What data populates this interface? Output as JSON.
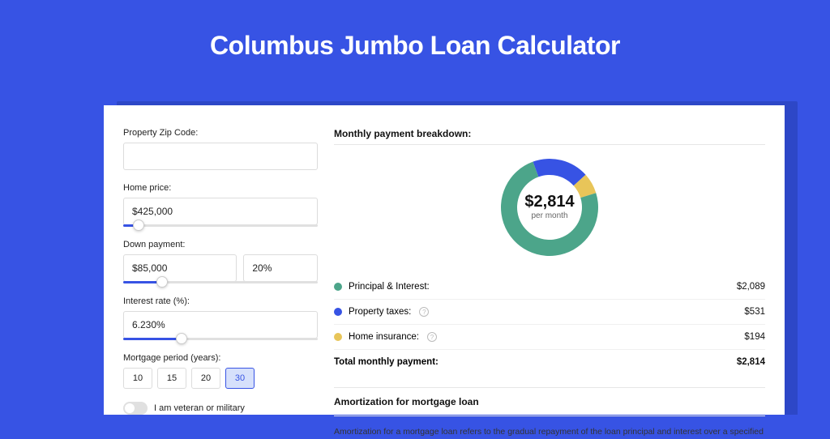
{
  "title": "Columbus Jumbo Loan Calculator",
  "colors": {
    "page_bg": "#3753e4",
    "card_bg": "#ffffff",
    "accent": "#3753e4"
  },
  "form": {
    "zip": {
      "label": "Property Zip Code:",
      "value": ""
    },
    "home_price": {
      "label": "Home price:",
      "value": "$425,000",
      "slider_pct": 8
    },
    "down_pay": {
      "label": "Down payment:",
      "amount": "$85,000",
      "pct": "20%",
      "slider_pct": 20
    },
    "rate": {
      "label": "Interest rate (%):",
      "value": "6.230%",
      "slider_pct": 30
    },
    "period": {
      "label": "Mortgage period (years):",
      "options": [
        "10",
        "15",
        "20",
        "30"
      ],
      "selected": "30"
    },
    "veteran": {
      "label": "I am veteran or military",
      "on": false
    }
  },
  "breakdown": {
    "heading": "Monthly payment breakdown:",
    "donut": {
      "type": "donut",
      "center_value": "$2,814",
      "center_label": "per month",
      "background_color": "#ffffff",
      "inner_radius": 40,
      "outer_radius": 60,
      "slices": [
        {
          "label": "Principal & Interest",
          "value": 2089,
          "color": "#4ca58a"
        },
        {
          "label": "Property taxes",
          "value": 531,
          "color": "#3753e4"
        },
        {
          "label": "Home insurance",
          "value": 194,
          "color": "#e8c559"
        }
      ]
    },
    "rows": [
      {
        "label": "Principal & Interest:",
        "value": "$2,089",
        "dot": "#4ca58a",
        "info": false
      },
      {
        "label": "Property taxes:",
        "value": "$531",
        "dot": "#3753e4",
        "info": true
      },
      {
        "label": "Home insurance:",
        "value": "$194",
        "dot": "#e8c559",
        "info": true
      }
    ],
    "total": {
      "label": "Total monthly payment:",
      "value": "$2,814"
    }
  },
  "amortization": {
    "heading": "Amortization for mortgage loan",
    "text": "Amortization for a mortgage loan refers to the gradual repayment of the loan principal and interest over a specified"
  }
}
